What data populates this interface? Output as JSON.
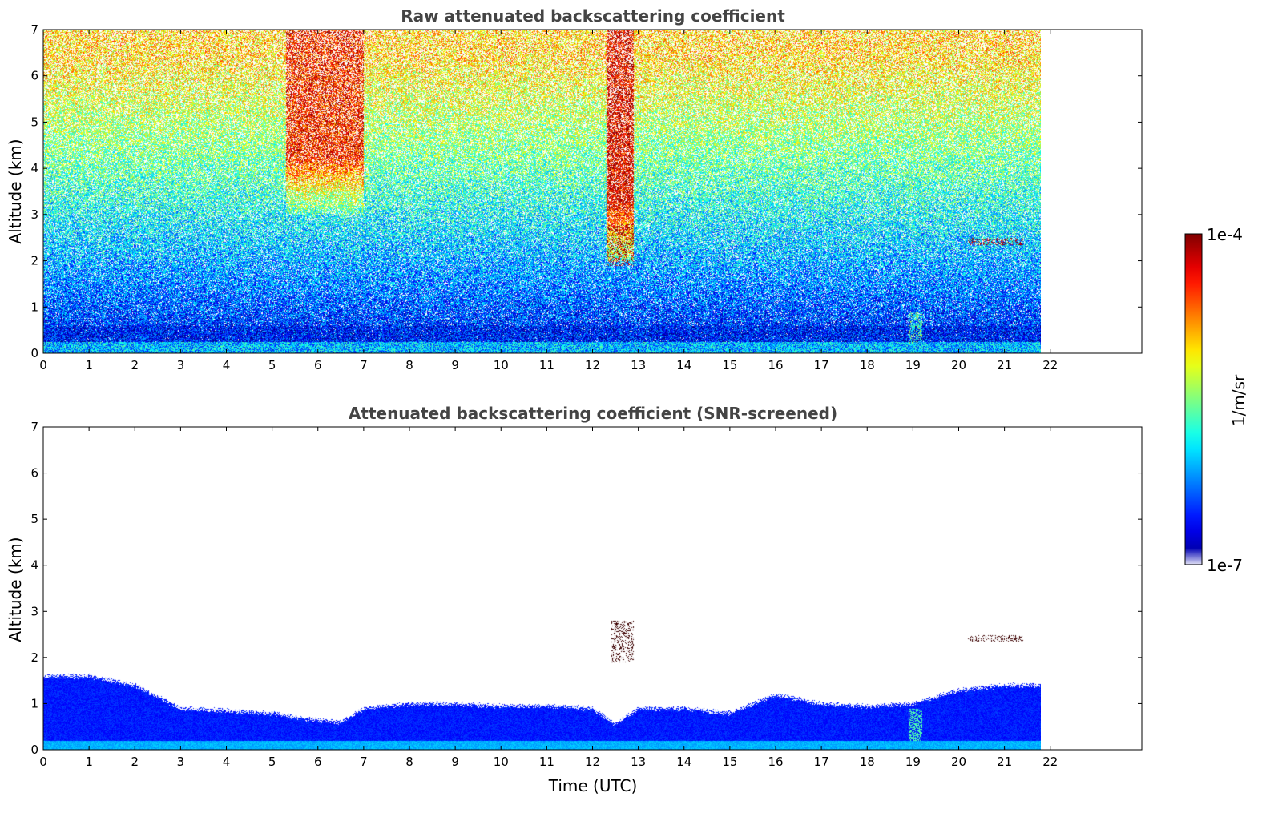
{
  "chart_data": [
    {
      "type": "heatmap",
      "title": "Raw attenuated backscattering coefficient",
      "xlabel": "",
      "ylabel": "Altitude (km)",
      "xlim": [
        0,
        24
      ],
      "ylim": [
        0,
        7
      ],
      "xticks": [
        "0",
        "1",
        "2",
        "3",
        "4",
        "5",
        "6",
        "7",
        "8",
        "9",
        "10",
        "11",
        "12",
        "13",
        "14",
        "15",
        "16",
        "17",
        "18",
        "19",
        "20",
        "21",
        "22"
      ],
      "yticks": [
        "0",
        "1",
        "2",
        "3",
        "4",
        "5",
        "6",
        "7"
      ],
      "data_time_range": [
        0,
        21.8
      ],
      "color_scale": "log",
      "color_range": [
        "1e-7",
        "1e-4"
      ],
      "features": [
        {
          "name": "boundary layer",
          "time": [
            0,
            21.8
          ],
          "altitude": [
            0,
            0.5
          ],
          "level": 0.12
        },
        {
          "name": "elevated aerosol column",
          "time": [
            5.3,
            7.0
          ],
          "altitude": [
            3,
            7
          ],
          "level": 0.85
        },
        {
          "name": "elevated aerosol column",
          "time": [
            12.3,
            12.9
          ],
          "altitude": [
            2,
            7
          ],
          "level": 0.9
        },
        {
          "name": "cloud",
          "time": [
            12.3,
            12.9
          ],
          "altitude": [
            1.9,
            2.8
          ],
          "level": 1.0
        },
        {
          "name": "cloud",
          "time": [
            20.2,
            21.4
          ],
          "altitude": [
            2.35,
            2.5
          ],
          "level": 1.0
        },
        {
          "name": "rain streak",
          "time": [
            18.9,
            19.2
          ],
          "altitude": [
            0.2,
            0.9
          ],
          "level": 0.45
        }
      ]
    },
    {
      "type": "heatmap",
      "title": "Attenuated backscattering coefficient (SNR-screened)",
      "xlabel": "Time (UTC)",
      "ylabel": "Altitude (km)",
      "xlim": [
        0,
        24
      ],
      "ylim": [
        0,
        7
      ],
      "xticks": [
        "0",
        "1",
        "2",
        "3",
        "4",
        "5",
        "6",
        "7",
        "8",
        "9",
        "10",
        "11",
        "12",
        "13",
        "14",
        "15",
        "16",
        "17",
        "18",
        "19",
        "20",
        "21",
        "22"
      ],
      "yticks": [
        "0",
        "1",
        "2",
        "3",
        "4",
        "5",
        "6",
        "7"
      ],
      "data_time_range": [
        0,
        21.8
      ],
      "color_scale": "log",
      "color_range": [
        "1e-7",
        "1e-4"
      ],
      "boundary_layer_top": {
        "time": [
          0,
          1,
          2,
          3,
          4,
          5,
          5.5,
          6,
          6.5,
          7,
          8,
          9,
          10,
          11,
          12,
          12.5,
          13,
          14,
          15,
          16,
          17,
          18,
          19,
          20,
          21,
          21.8
        ],
        "altitude": [
          1.6,
          1.6,
          1.4,
          0.9,
          0.85,
          0.8,
          0.7,
          0.65,
          0.6,
          0.9,
          1.0,
          1.0,
          0.95,
          0.95,
          0.9,
          0.55,
          0.9,
          0.9,
          0.8,
          1.2,
          1.0,
          0.95,
          1.0,
          1.3,
          1.4,
          1.4
        ]
      },
      "features": [
        {
          "name": "cloud",
          "time": [
            12.4,
            12.9
          ],
          "altitude": [
            1.9,
            2.8
          ],
          "level": 1.0
        },
        {
          "name": "cloud",
          "time": [
            20.2,
            21.4
          ],
          "altitude": [
            2.35,
            2.5
          ],
          "level": 1.0
        },
        {
          "name": "rain streak",
          "time": [
            18.9,
            19.2
          ],
          "altitude": [
            0.2,
            0.9
          ],
          "level": 0.45
        }
      ]
    }
  ],
  "colorbar": {
    "label": "1/m/sr",
    "max_label": "1e-4",
    "min_label": "1e-7",
    "colormap": "jet"
  }
}
